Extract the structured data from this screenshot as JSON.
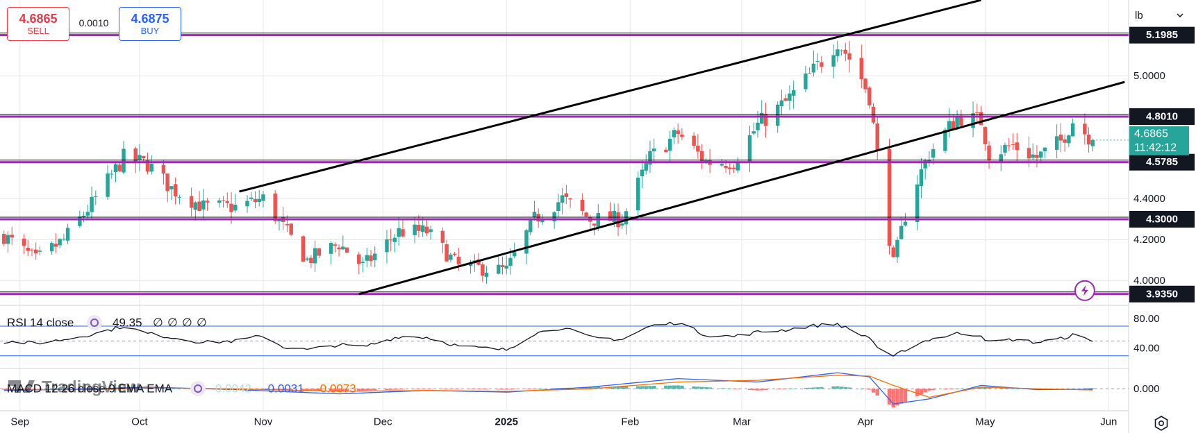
{
  "trade_panel": {
    "sell_price": "4.6865",
    "sell_label": "SELL",
    "spread": "0.0010",
    "buy_price": "4.6875",
    "buy_label": "BUY"
  },
  "unit_select": {
    "value": "lb",
    "icon": "chevron-down-icon"
  },
  "settings": {
    "icon": "gear-icon"
  },
  "colors": {
    "up": "#26a69a",
    "down": "#ef5350",
    "level": "#9c27b0",
    "trend": "#000000",
    "rsi_band": "#2962ff",
    "macd": "#2962ff",
    "signal": "#ff6d00",
    "current": "#26a69a",
    "grid": "#e6e8ec"
  },
  "chart_data": [
    {
      "type": "candlestick",
      "symbol_units": "lb",
      "x_ticks": [
        "Sep",
        "Oct",
        "Nov",
        "Dec",
        "2025",
        "Feb",
        "Mar",
        "Apr",
        "May",
        "Jun"
      ],
      "x_range": [
        "2024-08-27",
        "2025-06-06"
      ],
      "y_ticks": [
        "4.0000",
        "4.2000",
        "4.4000",
        "5.0000"
      ],
      "ylim": [
        3.88,
        5.37
      ],
      "grid": true,
      "horizontal_levels": [
        {
          "value": 5.1985,
          "label": "5.1985"
        },
        {
          "value": 4.801,
          "label": "4.8010"
        },
        {
          "value": 4.5785,
          "label": "4.5785"
        },
        {
          "value": 4.3,
          "label": "4.3000"
        },
        {
          "value": 3.935,
          "label": "3.9350"
        }
      ],
      "current_price": {
        "value": 4.6865,
        "label": "4.6865",
        "countdown": "11:42:12"
      },
      "trend_lines": [
        {
          "from": [
            "2024-10-26",
            4.435
          ],
          "to": [
            "2025-04-30",
            5.37
          ]
        },
        {
          "from": [
            "2024-11-25",
            3.935
          ],
          "to": [
            "2025-06-05",
            4.97
          ]
        }
      ],
      "annotations": [
        {
          "type": "lightning-icon",
          "at": [
            "2025-05-26",
            3.935
          ]
        }
      ],
      "ohlc_path": [
        [
          "2024-08-28",
          4.22
        ],
        [
          "2024-09-05",
          4.1
        ],
        [
          "2024-09-12",
          4.2
        ],
        [
          "2024-09-20",
          4.4
        ],
        [
          "2024-09-27",
          4.6
        ],
        [
          "2024-10-03",
          4.57
        ],
        [
          "2024-10-09",
          4.45
        ],
        [
          "2024-10-17",
          4.36
        ],
        [
          "2024-10-25",
          4.36
        ],
        [
          "2024-11-01",
          4.4
        ],
        [
          "2024-11-06",
          4.26
        ],
        [
          "2024-11-12",
          4.1
        ],
        [
          "2024-11-20",
          4.18
        ],
        [
          "2024-11-26",
          4.07
        ],
        [
          "2024-12-05",
          4.24
        ],
        [
          "2024-12-12",
          4.24
        ],
        [
          "2024-12-20",
          4.07
        ],
        [
          "2025-01-01",
          4.05
        ],
        [
          "2025-01-08",
          4.3
        ],
        [
          "2025-01-15",
          4.4
        ],
        [
          "2025-01-22",
          4.3
        ],
        [
          "2025-01-30",
          4.3
        ],
        [
          "2025-02-06",
          4.6
        ],
        [
          "2025-02-13",
          4.72
        ],
        [
          "2025-02-20",
          4.58
        ],
        [
          "2025-02-27",
          4.58
        ],
        [
          "2025-03-05",
          4.76
        ],
        [
          "2025-03-12",
          4.87
        ],
        [
          "2025-03-18",
          5.0
        ],
        [
          "2025-03-25",
          5.17
        ],
        [
          "2025-03-30",
          5.03
        ],
        [
          "2025-04-02",
          4.9
        ],
        [
          "2025-04-05",
          4.47
        ],
        [
          "2025-04-08",
          4.08
        ],
        [
          "2025-04-12",
          4.4
        ],
        [
          "2025-04-17",
          4.62
        ],
        [
          "2025-04-24",
          4.8
        ],
        [
          "2025-04-30",
          4.78
        ],
        [
          "2025-05-02",
          4.62
        ],
        [
          "2025-05-08",
          4.66
        ],
        [
          "2025-05-14",
          4.6
        ],
        [
          "2025-05-20",
          4.68
        ],
        [
          "2025-05-23",
          4.78
        ],
        [
          "2025-05-28",
          4.6865
        ]
      ]
    },
    {
      "type": "line",
      "title": "RSI 14 close",
      "value_label": "49.35",
      "extra_labels": [
        "∅",
        "∅",
        "∅",
        "∅"
      ],
      "y_ticks": [
        "80.00",
        "40.00"
      ],
      "ylim": [
        13,
        98
      ],
      "bands": [
        70,
        30
      ],
      "midline": 50,
      "series": [
        {
          "values_path": [
            [
              "2024-08-28",
              49
            ],
            [
              "2024-09-05",
              47
            ],
            [
              "2024-09-12",
              52
            ],
            [
              "2024-09-20",
              60
            ],
            [
              "2024-09-27",
              70
            ],
            [
              "2024-10-03",
              60
            ],
            [
              "2024-10-09",
              55
            ],
            [
              "2024-10-17",
              48
            ],
            [
              "2024-10-25",
              50
            ],
            [
              "2024-11-01",
              57
            ],
            [
              "2024-11-06",
              42
            ],
            [
              "2024-11-12",
              38
            ],
            [
              "2024-11-20",
              45
            ],
            [
              "2024-11-26",
              42
            ],
            [
              "2024-12-05",
              56
            ],
            [
              "2024-12-12",
              55
            ],
            [
              "2024-12-20",
              43
            ],
            [
              "2025-01-01",
              38
            ],
            [
              "2025-01-08",
              60
            ],
            [
              "2025-01-15",
              68
            ],
            [
              "2025-01-22",
              55
            ],
            [
              "2025-01-30",
              52
            ],
            [
              "2025-02-06",
              70
            ],
            [
              "2025-02-13",
              75
            ],
            [
              "2025-02-20",
              58
            ],
            [
              "2025-02-27",
              56
            ],
            [
              "2025-03-05",
              62
            ],
            [
              "2025-03-12",
              65
            ],
            [
              "2025-03-18",
              70
            ],
            [
              "2025-03-25",
              73
            ],
            [
              "2025-03-30",
              60
            ],
            [
              "2025-04-02",
              55
            ],
            [
              "2025-04-05",
              35
            ],
            [
              "2025-04-08",
              28
            ],
            [
              "2025-04-12",
              42
            ],
            [
              "2025-04-17",
              52
            ],
            [
              "2025-04-24",
              60
            ],
            [
              "2025-04-30",
              58
            ],
            [
              "2025-05-02",
              48
            ],
            [
              "2025-05-08",
              52
            ],
            [
              "2025-05-14",
              48
            ],
            [
              "2025-05-20",
              53
            ],
            [
              "2025-05-23",
              58
            ],
            [
              "2025-05-28",
              49.35
            ]
          ]
        }
      ]
    },
    {
      "type": "bar",
      "title": "MACD 12 26 close 9 EMA EMA",
      "watermark": "TradingView",
      "values_label": {
        "hist": "0.0042",
        "macd": "-0.0031",
        "signal": "-0.0073"
      },
      "y_ticks": [
        "0.000"
      ],
      "ylim": [
        -0.13,
        0.12
      ],
      "series": [
        {
          "name": "MACD",
          "values_path": [
            [
              "2024-08-28",
              -0.01
            ],
            [
              "2024-09-20",
              0.0
            ],
            [
              "2024-10-03",
              0.01
            ],
            [
              "2024-10-25",
              -0.005
            ],
            [
              "2024-11-20",
              -0.03
            ],
            [
              "2024-12-12",
              -0.01
            ],
            [
              "2025-01-01",
              -0.02
            ],
            [
              "2025-01-22",
              0.01
            ],
            [
              "2025-02-13",
              0.06
            ],
            [
              "2025-03-05",
              0.04
            ],
            [
              "2025-03-25",
              0.095
            ],
            [
              "2025-04-02",
              0.07
            ],
            [
              "2025-04-08",
              -0.09
            ],
            [
              "2025-04-17",
              -0.06
            ],
            [
              "2025-04-30",
              0.02
            ],
            [
              "2025-05-14",
              -0.005
            ],
            [
              "2025-05-28",
              -0.0031
            ]
          ]
        },
        {
          "name": "Signal",
          "values_path": [
            [
              "2024-08-28",
              -0.005
            ],
            [
              "2024-09-20",
              -0.005
            ],
            [
              "2024-10-03",
              0.005
            ],
            [
              "2024-10-25",
              0.0
            ],
            [
              "2024-11-20",
              -0.015
            ],
            [
              "2024-12-12",
              -0.01
            ],
            [
              "2025-01-01",
              -0.015
            ],
            [
              "2025-01-22",
              0.0
            ],
            [
              "2025-02-13",
              0.04
            ],
            [
              "2025-03-05",
              0.05
            ],
            [
              "2025-03-25",
              0.08
            ],
            [
              "2025-04-02",
              0.075
            ],
            [
              "2025-04-08",
              0.02
            ],
            [
              "2025-04-17",
              -0.05
            ],
            [
              "2025-04-30",
              0.01
            ],
            [
              "2025-05-14",
              0.0
            ],
            [
              "2025-05-28",
              -0.0073
            ]
          ]
        }
      ]
    }
  ]
}
